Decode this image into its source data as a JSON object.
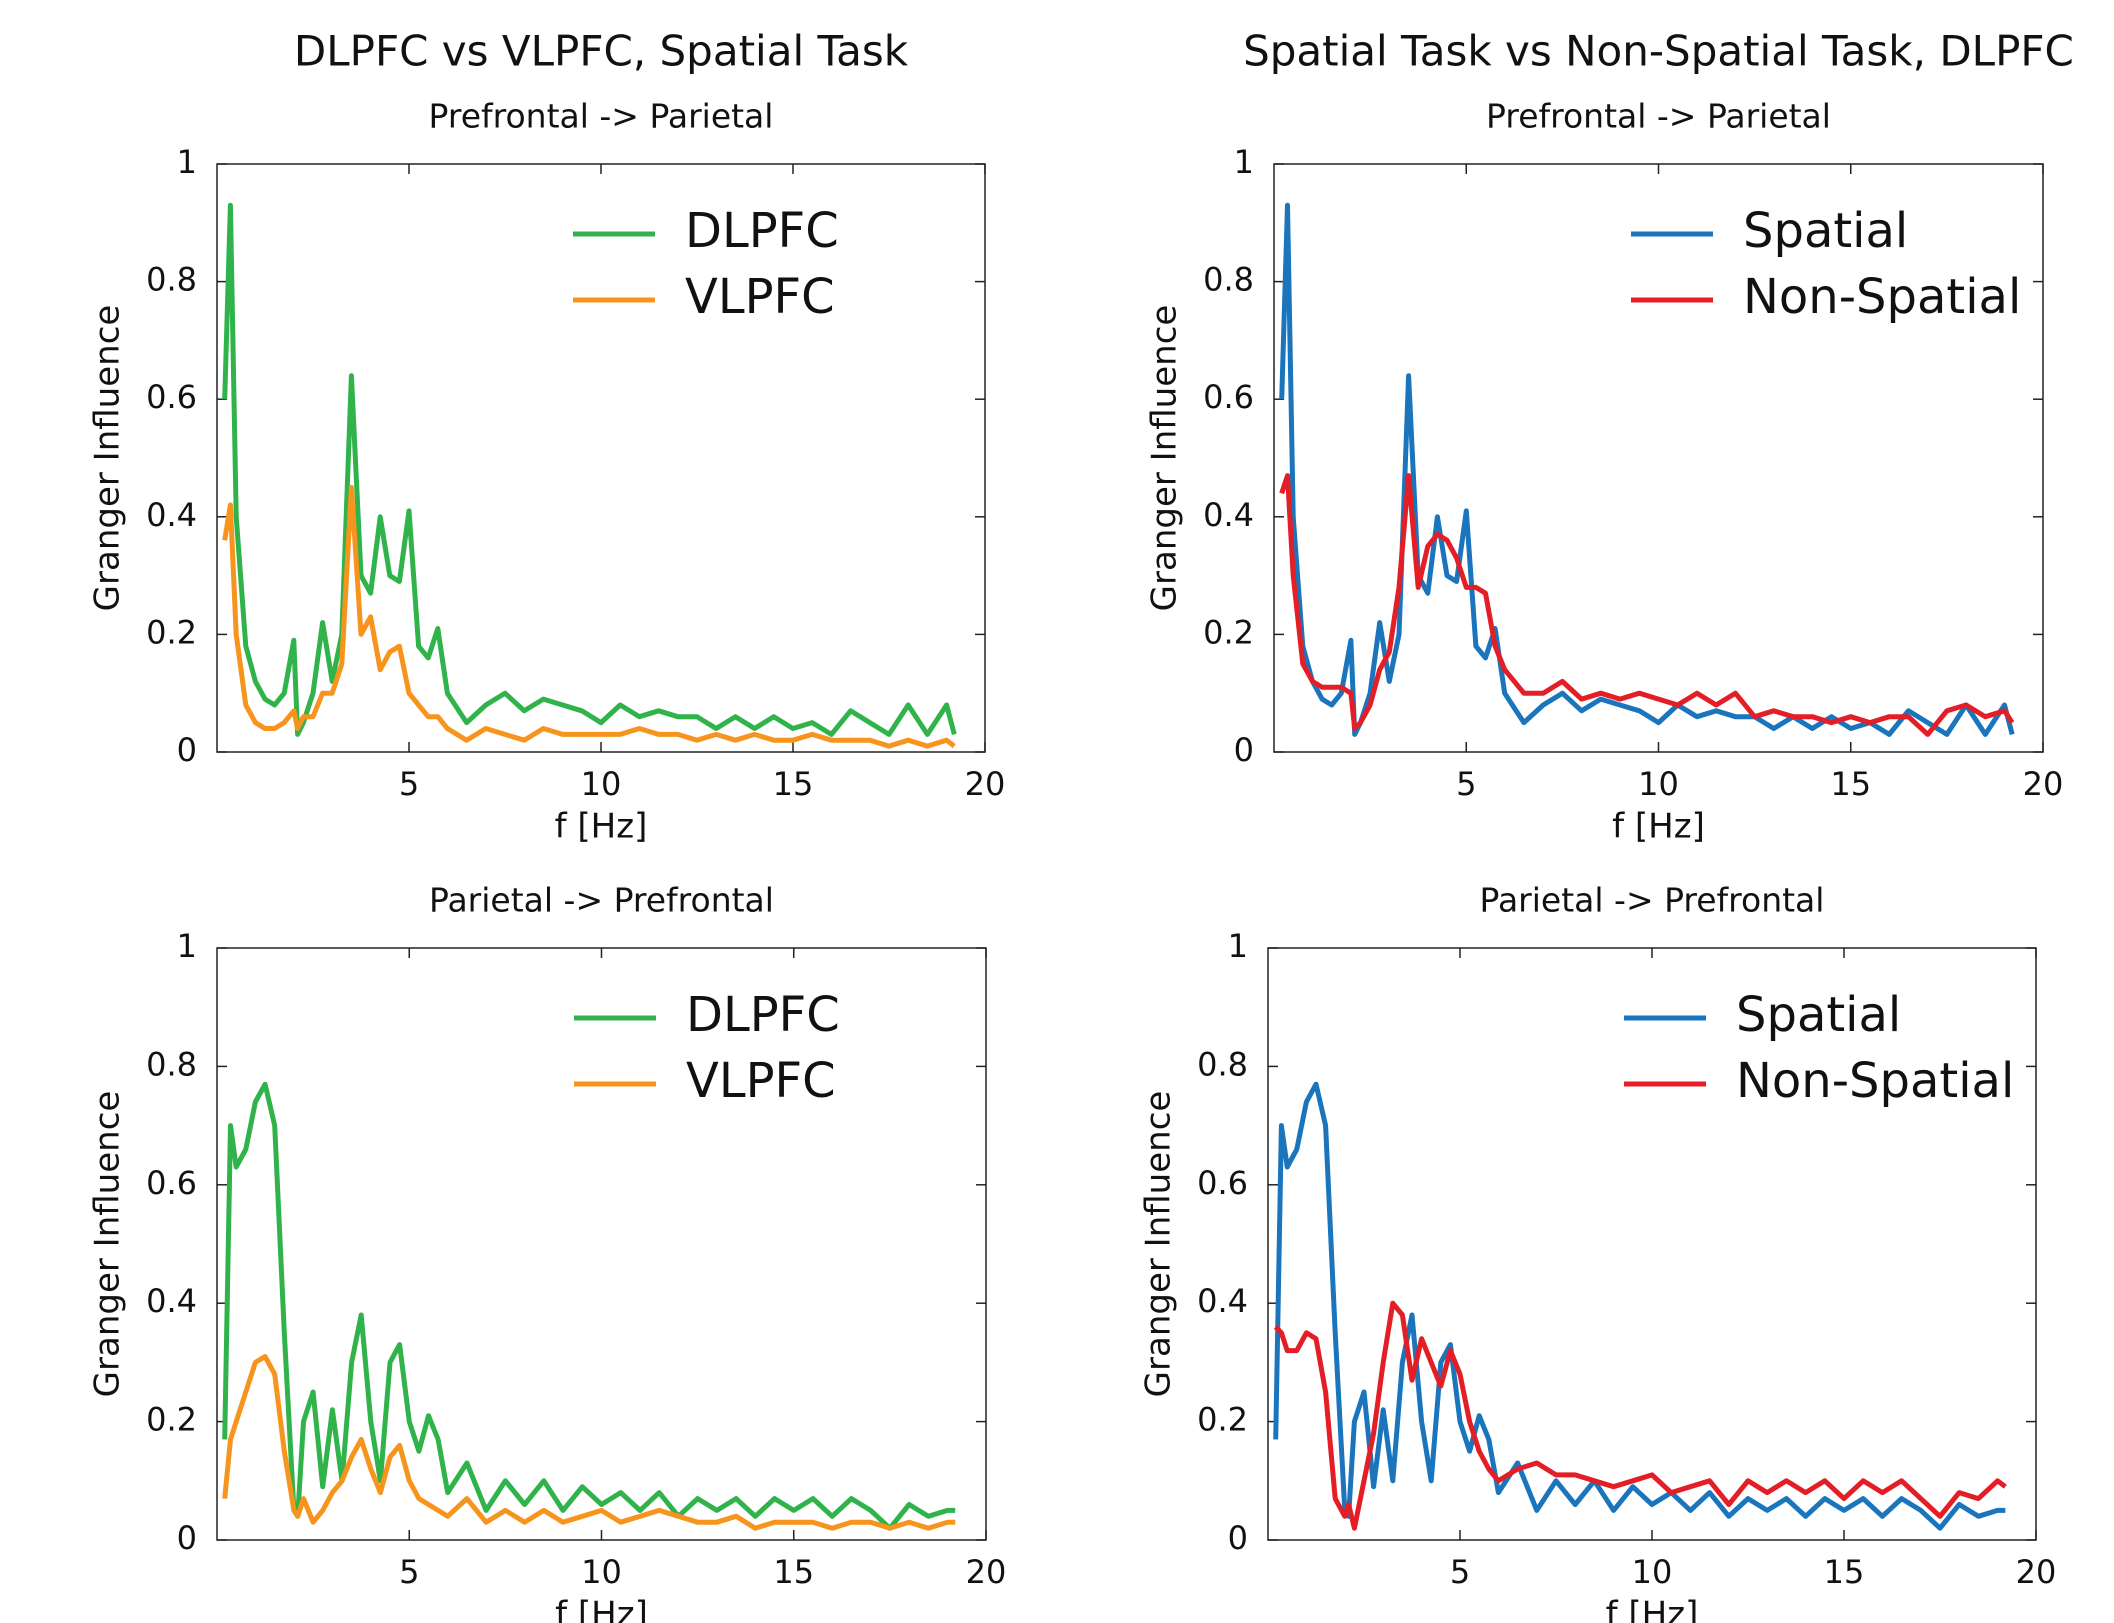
{
  "chart_data": [
    {
      "type": "line",
      "title": "DLPFC vs VLPFC, Spatial Task",
      "subtitle": "Prefrontal -> Parietal",
      "xlabel": "f [Hz]",
      "ylabel": "Granger Influence",
      "xlim": [
        0,
        20
      ],
      "xticks": [
        5,
        10,
        15,
        20
      ],
      "ylim": [
        0,
        1
      ],
      "yticks": [
        0,
        0.2,
        0.4,
        0.6,
        0.8,
        1
      ],
      "legend": "upper right",
      "x": [
        0.2,
        0.35,
        0.5,
        0.75,
        1,
        1.25,
        1.5,
        1.75,
        2,
        2.1,
        2.25,
        2.5,
        2.75,
        3,
        3.25,
        3.5,
        3.75,
        4,
        4.25,
        4.5,
        4.75,
        5,
        5.25,
        5.5,
        5.75,
        6,
        6.5,
        7,
        7.5,
        8,
        8.5,
        9,
        9.5,
        10,
        10.5,
        11,
        11.5,
        12,
        12.5,
        13,
        13.5,
        14,
        14.5,
        15,
        15.5,
        16,
        16.5,
        17,
        17.5,
        18,
        18.5,
        19,
        19.2
      ],
      "series": [
        {
          "name": "DLPFC",
          "color": "#2fb34a",
          "values": [
            0.6,
            0.93,
            0.4,
            0.18,
            0.12,
            0.09,
            0.08,
            0.1,
            0.19,
            0.03,
            0.05,
            0.1,
            0.22,
            0.12,
            0.2,
            0.64,
            0.3,
            0.27,
            0.4,
            0.3,
            0.29,
            0.41,
            0.18,
            0.16,
            0.21,
            0.1,
            0.05,
            0.08,
            0.1,
            0.07,
            0.09,
            0.08,
            0.07,
            0.05,
            0.08,
            0.06,
            0.07,
            0.06,
            0.06,
            0.04,
            0.06,
            0.04,
            0.06,
            0.04,
            0.05,
            0.03,
            0.07,
            0.05,
            0.03,
            0.08,
            0.03,
            0.08,
            0.03
          ]
        },
        {
          "name": "VLPFC",
          "color": "#f7941d",
          "values": [
            0.36,
            0.42,
            0.2,
            0.08,
            0.05,
            0.04,
            0.04,
            0.05,
            0.07,
            0.04,
            0.06,
            0.06,
            0.1,
            0.1,
            0.15,
            0.45,
            0.2,
            0.23,
            0.14,
            0.17,
            0.18,
            0.1,
            0.08,
            0.06,
            0.06,
            0.04,
            0.02,
            0.04,
            0.03,
            0.02,
            0.04,
            0.03,
            0.03,
            0.03,
            0.03,
            0.04,
            0.03,
            0.03,
            0.02,
            0.03,
            0.02,
            0.03,
            0.02,
            0.02,
            0.03,
            0.02,
            0.02,
            0.02,
            0.01,
            0.02,
            0.01,
            0.02,
            0.01
          ]
        }
      ]
    },
    {
      "type": "line",
      "title": "Spatial Task vs Non-Spatial Task, DLPFC",
      "subtitle": "Prefrontal -> Parietal",
      "xlabel": "f [Hz]",
      "ylabel": "Granger Influence",
      "xlim": [
        0,
        20
      ],
      "xticks": [
        5,
        10,
        15,
        20
      ],
      "ylim": [
        0,
        1
      ],
      "yticks": [
        0,
        0.2,
        0.4,
        0.6,
        0.8,
        1
      ],
      "legend": "upper right",
      "x": [
        0.2,
        0.35,
        0.5,
        0.75,
        1,
        1.25,
        1.5,
        1.75,
        2,
        2.1,
        2.25,
        2.5,
        2.75,
        3,
        3.25,
        3.5,
        3.75,
        4,
        4.25,
        4.5,
        4.75,
        5,
        5.25,
        5.5,
        5.75,
        6,
        6.5,
        7,
        7.5,
        8,
        8.5,
        9,
        9.5,
        10,
        10.5,
        11,
        11.5,
        12,
        12.5,
        13,
        13.5,
        14,
        14.5,
        15,
        15.5,
        16,
        16.5,
        17,
        17.5,
        18,
        18.5,
        19,
        19.2
      ],
      "series": [
        {
          "name": "Spatial",
          "color": "#1a75bc",
          "values": [
            0.6,
            0.93,
            0.4,
            0.18,
            0.12,
            0.09,
            0.08,
            0.1,
            0.19,
            0.03,
            0.05,
            0.1,
            0.22,
            0.12,
            0.2,
            0.64,
            0.3,
            0.27,
            0.4,
            0.3,
            0.29,
            0.41,
            0.18,
            0.16,
            0.21,
            0.1,
            0.05,
            0.08,
            0.1,
            0.07,
            0.09,
            0.08,
            0.07,
            0.05,
            0.08,
            0.06,
            0.07,
            0.06,
            0.06,
            0.04,
            0.06,
            0.04,
            0.06,
            0.04,
            0.05,
            0.03,
            0.07,
            0.05,
            0.03,
            0.08,
            0.03,
            0.08,
            0.03
          ]
        },
        {
          "name": "Non-Spatial",
          "color": "#e41e26",
          "values": [
            0.44,
            0.47,
            0.3,
            0.15,
            0.12,
            0.11,
            0.11,
            0.11,
            0.1,
            0.04,
            0.05,
            0.08,
            0.14,
            0.17,
            0.28,
            0.47,
            0.28,
            0.35,
            0.37,
            0.36,
            0.33,
            0.28,
            0.28,
            0.27,
            0.18,
            0.14,
            0.1,
            0.1,
            0.12,
            0.09,
            0.1,
            0.09,
            0.1,
            0.09,
            0.08,
            0.1,
            0.08,
            0.1,
            0.06,
            0.07,
            0.06,
            0.06,
            0.05,
            0.06,
            0.05,
            0.06,
            0.06,
            0.03,
            0.07,
            0.08,
            0.06,
            0.07,
            0.05
          ]
        }
      ]
    },
    {
      "type": "line",
      "subtitle": "Parietal -> Prefrontal",
      "xlabel": "f [Hz]",
      "ylabel": "Granger Influence",
      "xlim": [
        0,
        20
      ],
      "xticks": [
        5,
        10,
        15,
        20
      ],
      "ylim": [
        0,
        1
      ],
      "yticks": [
        0,
        0.2,
        0.4,
        0.6,
        0.8,
        1
      ],
      "legend": "upper right",
      "x": [
        0.2,
        0.35,
        0.5,
        0.75,
        1,
        1.25,
        1.5,
        1.75,
        2,
        2.1,
        2.25,
        2.5,
        2.75,
        3,
        3.25,
        3.5,
        3.75,
        4,
        4.25,
        4.5,
        4.75,
        5,
        5.25,
        5.5,
        5.75,
        6,
        6.5,
        7,
        7.5,
        8,
        8.5,
        9,
        9.5,
        10,
        10.5,
        11,
        11.5,
        12,
        12.5,
        13,
        13.5,
        14,
        14.5,
        15,
        15.5,
        16,
        16.5,
        17,
        17.5,
        18,
        18.5,
        19,
        19.2
      ],
      "series": [
        {
          "name": "DLPFC",
          "color": "#2fb34a",
          "values": [
            0.17,
            0.7,
            0.63,
            0.66,
            0.74,
            0.77,
            0.7,
            0.35,
            0.05,
            0.04,
            0.2,
            0.25,
            0.09,
            0.22,
            0.1,
            0.3,
            0.38,
            0.2,
            0.1,
            0.3,
            0.33,
            0.2,
            0.15,
            0.21,
            0.17,
            0.08,
            0.13,
            0.05,
            0.1,
            0.06,
            0.1,
            0.05,
            0.09,
            0.06,
            0.08,
            0.05,
            0.08,
            0.04,
            0.07,
            0.05,
            0.07,
            0.04,
            0.07,
            0.05,
            0.07,
            0.04,
            0.07,
            0.05,
            0.02,
            0.06,
            0.04,
            0.05,
            0.05
          ]
        },
        {
          "name": "VLPFC",
          "color": "#f7941d",
          "values": [
            0.07,
            0.17,
            0.2,
            0.25,
            0.3,
            0.31,
            0.28,
            0.15,
            0.05,
            0.04,
            0.07,
            0.03,
            0.05,
            0.08,
            0.1,
            0.14,
            0.17,
            0.12,
            0.08,
            0.14,
            0.16,
            0.1,
            0.07,
            0.06,
            0.05,
            0.04,
            0.07,
            0.03,
            0.05,
            0.03,
            0.05,
            0.03,
            0.04,
            0.05,
            0.03,
            0.04,
            0.05,
            0.04,
            0.03,
            0.03,
            0.04,
            0.02,
            0.03,
            0.03,
            0.03,
            0.02,
            0.03,
            0.03,
            0.02,
            0.03,
            0.02,
            0.03,
            0.03
          ]
        }
      ]
    },
    {
      "type": "line",
      "subtitle": "Parietal -> Prefrontal",
      "xlabel": "f [Hz]",
      "ylabel": "Granger Influence",
      "xlim": [
        0,
        20
      ],
      "xticks": [
        5,
        10,
        15,
        20
      ],
      "ylim": [
        0,
        1
      ],
      "yticks": [
        0,
        0.2,
        0.4,
        0.6,
        0.8,
        1
      ],
      "legend": "upper right",
      "x": [
        0.2,
        0.35,
        0.5,
        0.75,
        1,
        1.25,
        1.5,
        1.75,
        2,
        2.1,
        2.25,
        2.5,
        2.75,
        3,
        3.25,
        3.5,
        3.75,
        4,
        4.25,
        4.5,
        4.75,
        5,
        5.25,
        5.5,
        5.75,
        6,
        6.5,
        7,
        7.5,
        8,
        8.5,
        9,
        9.5,
        10,
        10.5,
        11,
        11.5,
        12,
        12.5,
        13,
        13.5,
        14,
        14.5,
        15,
        15.5,
        16,
        16.5,
        17,
        17.5,
        18,
        18.5,
        19,
        19.2
      ],
      "series": [
        {
          "name": "Spatial",
          "color": "#1a75bc",
          "values": [
            0.17,
            0.7,
            0.63,
            0.66,
            0.74,
            0.77,
            0.7,
            0.35,
            0.05,
            0.04,
            0.2,
            0.25,
            0.09,
            0.22,
            0.1,
            0.3,
            0.38,
            0.2,
            0.1,
            0.3,
            0.33,
            0.2,
            0.15,
            0.21,
            0.17,
            0.08,
            0.13,
            0.05,
            0.1,
            0.06,
            0.1,
            0.05,
            0.09,
            0.06,
            0.08,
            0.05,
            0.08,
            0.04,
            0.07,
            0.05,
            0.07,
            0.04,
            0.07,
            0.05,
            0.07,
            0.04,
            0.07,
            0.05,
            0.02,
            0.06,
            0.04,
            0.05,
            0.05
          ]
        },
        {
          "name": "Non-Spatial",
          "color": "#e41e26",
          "values": [
            0.36,
            0.35,
            0.32,
            0.32,
            0.35,
            0.34,
            0.25,
            0.07,
            0.04,
            0.06,
            0.02,
            0.1,
            0.18,
            0.3,
            0.4,
            0.38,
            0.27,
            0.34,
            0.3,
            0.26,
            0.32,
            0.28,
            0.2,
            0.15,
            0.12,
            0.1,
            0.12,
            0.13,
            0.11,
            0.11,
            0.1,
            0.09,
            0.1,
            0.11,
            0.08,
            0.09,
            0.1,
            0.06,
            0.1,
            0.08,
            0.1,
            0.08,
            0.1,
            0.07,
            0.1,
            0.08,
            0.1,
            0.07,
            0.04,
            0.08,
            0.07,
            0.1,
            0.09
          ]
        }
      ]
    }
  ]
}
